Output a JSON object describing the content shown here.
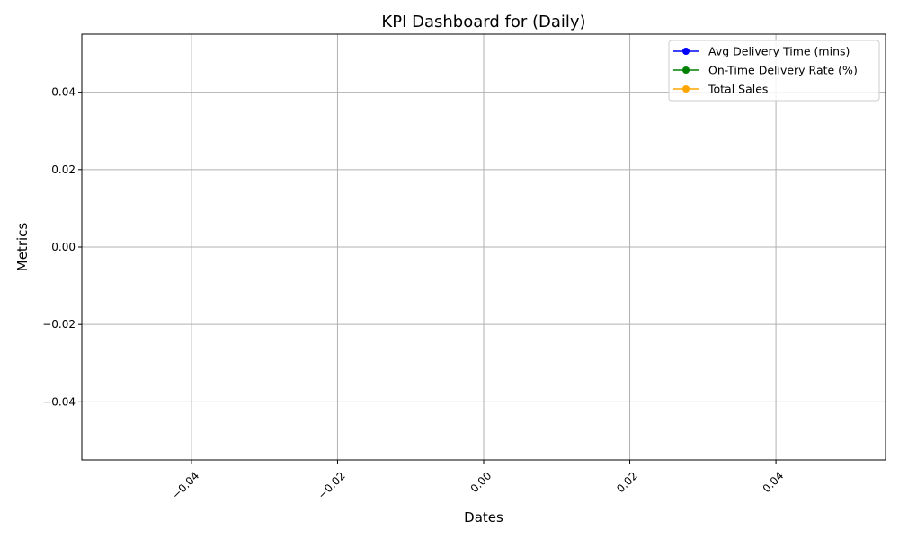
{
  "chart_data": {
    "type": "line",
    "title": "KPI Dashboard for  (Daily)",
    "xlabel": "Dates",
    "ylabel": "Metrics",
    "x": [],
    "xlim": [
      -0.055,
      0.055
    ],
    "ylim": [
      -0.055,
      0.055
    ],
    "x_ticks": [
      "−0.04",
      "−0.02",
      "0.00",
      "0.02",
      "0.04"
    ],
    "x_tick_values": [
      -0.04,
      -0.02,
      0.0,
      0.02,
      0.04
    ],
    "y_ticks": [
      "0.04",
      "0.02",
      "0.00",
      "−0.02",
      "−0.04"
    ],
    "y_tick_values": [
      0.04,
      0.02,
      0.0,
      -0.02,
      -0.04
    ],
    "grid": true,
    "legend": "top-right",
    "series": [
      {
        "name": "Avg Delivery Time (mins)",
        "color": "#0000ff",
        "values": []
      },
      {
        "name": "On-Time Delivery Rate (%)",
        "color": "#008000",
        "values": []
      },
      {
        "name": "Total Sales",
        "color": "#ffa500",
        "values": []
      }
    ]
  }
}
